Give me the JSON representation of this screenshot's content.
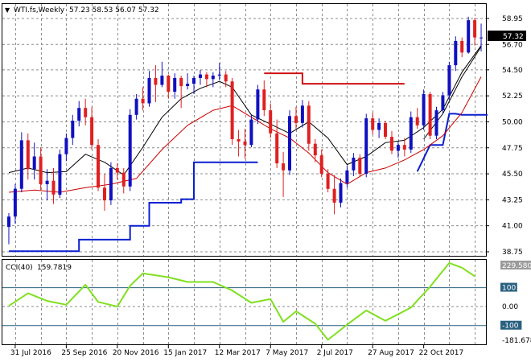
{
  "header": {
    "symbol": "WTI.fs,Weekly",
    "ohlc": "57.23 58.53 56.07 57.32"
  },
  "current_price_label": "57.32",
  "cci_header": {
    "label": "CCI(40)",
    "value": "159.7819"
  },
  "colors": {
    "bull": "#1010c0",
    "bear": "#e02020",
    "ma_fast": "#000000",
    "ma_slow": "#cc0000",
    "stop_up": "#0a1fd0",
    "stop_down": "#d01010",
    "cci": "#80e020",
    "grid": "#8c8c8c",
    "level_line": "#2a6080"
  },
  "chart_data": [
    {
      "type": "candlestick",
      "panel": "price",
      "y_ticks": [
        "58.95",
        "56.70",
        "54.50",
        "52.25",
        "50.00",
        "47.75",
        "45.50",
        "43.25",
        "41.00",
        "38.75"
      ],
      "x_ticks": [
        "31 Jul 2016",
        "25 Sep 2016",
        "20 Nov 2016",
        "15 Jan 2017",
        "12 Mar 2017",
        "7 May 2017",
        "2 Jul 2017",
        "27 Aug 2017",
        "22 Oct 2017"
      ],
      "ylim": [
        38.4,
        60.2
      ],
      "candles": [
        [
          40.9,
          42.1,
          39.4,
          41.8
        ],
        [
          41.8,
          44.6,
          41.2,
          44.2
        ],
        [
          44.2,
          49.1,
          43.9,
          48.4
        ],
        [
          48.4,
          49.0,
          45.0,
          45.9
        ],
        [
          45.9,
          48.2,
          45.0,
          47.0
        ],
        [
          47.0,
          47.8,
          44.1,
          44.6
        ],
        [
          44.6,
          45.9,
          43.2,
          44.9
        ],
        [
          44.9,
          46.0,
          42.9,
          43.7
        ],
        [
          43.7,
          47.6,
          43.4,
          47.2
        ],
        [
          47.2,
          49.0,
          46.6,
          48.6
        ],
        [
          48.6,
          50.6,
          48.0,
          50.1
        ],
        [
          50.1,
          51.8,
          49.6,
          51.2
        ],
        [
          51.2,
          52.0,
          49.7,
          50.4
        ],
        [
          50.4,
          51.3,
          47.6,
          48.0
        ],
        [
          48.0,
          48.5,
          44.0,
          44.3
        ],
        [
          44.3,
          45.5,
          42.3,
          43.2
        ],
        [
          43.2,
          46.5,
          42.8,
          46.0
        ],
        [
          46.0,
          46.4,
          45.0,
          45.6
        ],
        [
          45.6,
          46.0,
          43.8,
          44.4
        ],
        [
          44.4,
          51.1,
          44.0,
          50.6
        ],
        [
          50.6,
          52.4,
          50.2,
          52.0
        ],
        [
          52.0,
          53.0,
          51.0,
          51.6
        ],
        [
          51.6,
          54.4,
          51.3,
          53.8
        ],
        [
          53.8,
          54.9,
          51.7,
          53.2
        ],
        [
          53.2,
          55.2,
          53.0,
          54.0
        ],
        [
          54.0,
          54.1,
          52.0,
          52.6
        ],
        [
          52.6,
          54.2,
          52.0,
          53.8
        ],
        [
          53.8,
          54.0,
          51.2,
          53.1
        ],
        [
          53.1,
          54.2,
          52.8,
          53.3
        ],
        [
          53.3,
          54.0,
          52.4,
          53.8
        ],
        [
          53.8,
          54.5,
          53.2,
          54.1
        ],
        [
          54.1,
          54.3,
          53.0,
          53.7
        ],
        [
          53.7,
          54.3,
          53.0,
          54.0
        ],
        [
          54.0,
          55.1,
          53.6,
          54.1
        ],
        [
          54.1,
          54.4,
          53.0,
          53.5
        ],
        [
          53.5,
          53.8,
          48.0,
          48.5
        ],
        [
          48.5,
          49.3,
          47.0,
          48.3
        ],
        [
          48.3,
          49.4,
          46.8,
          48.0
        ],
        [
          48.0,
          50.6,
          47.8,
          50.2
        ],
        [
          50.2,
          53.2,
          49.8,
          52.8
        ],
        [
          52.8,
          53.6,
          50.5,
          51.0
        ],
        [
          51.0,
          51.6,
          48.6,
          49.0
        ],
        [
          49.0,
          50.2,
          46.0,
          46.4
        ],
        [
          46.4,
          47.4,
          43.5,
          45.8
        ],
        [
          45.8,
          51.0,
          45.4,
          50.5
        ],
        [
          50.5,
          51.3,
          49.4,
          49.9
        ],
        [
          49.9,
          51.9,
          49.5,
          51.4
        ],
        [
          51.4,
          51.8,
          47.5,
          48.1
        ],
        [
          48.1,
          48.5,
          46.5,
          47.1
        ],
        [
          47.1,
          47.6,
          45.2,
          45.5
        ],
        [
          45.5,
          45.9,
          43.9,
          44.2
        ],
        [
          44.2,
          45.4,
          42.0,
          43.0
        ],
        [
          43.0,
          45.1,
          42.6,
          44.7
        ],
        [
          44.7,
          46.2,
          44.3,
          45.8
        ],
        [
          45.8,
          47.3,
          45.3,
          46.9
        ],
        [
          46.9,
          47.2,
          45.2,
          45.5
        ],
        [
          45.5,
          50.7,
          45.2,
          50.3
        ],
        [
          50.3,
          50.8,
          48.9,
          49.3
        ],
        [
          49.3,
          50.3,
          48.6,
          49.9
        ],
        [
          49.9,
          50.1,
          48.5,
          48.7
        ],
        [
          48.7,
          49.2,
          47.2,
          47.5
        ],
        [
          47.5,
          48.3,
          46.9,
          48.0
        ],
        [
          48.0,
          48.6,
          47.0,
          47.6
        ],
        [
          47.6,
          50.9,
          47.3,
          50.4
        ],
        [
          50.4,
          51.2,
          49.4,
          49.7
        ],
        [
          49.7,
          52.8,
          49.3,
          52.4
        ],
        [
          52.4,
          52.6,
          48.5,
          48.8
        ],
        [
          48.8,
          51.3,
          48.5,
          51.0
        ],
        [
          51.0,
          52.6,
          50.7,
          52.3
        ],
        [
          52.3,
          55.2,
          51.9,
          54.9
        ],
        [
          54.9,
          57.4,
          54.4,
          57.0
        ],
        [
          57.0,
          57.3,
          55.6,
          56.0
        ],
        [
          56.0,
          59.1,
          55.9,
          58.8
        ],
        [
          58.8,
          59.0,
          56.6,
          57.3
        ],
        [
          57.3,
          58.5,
          56.1,
          57.3
        ]
      ],
      "ma_fast": [
        [
          0,
          45.6
        ],
        [
          3,
          46.0
        ],
        [
          6,
          45.6
        ],
        [
          9,
          45.7
        ],
        [
          12,
          47.2
        ],
        [
          15,
          46.5
        ],
        [
          18,
          45.4
        ],
        [
          21,
          47.8
        ],
        [
          24,
          50.4
        ],
        [
          27,
          52.0
        ],
        [
          30,
          52.9
        ],
        [
          33,
          53.5
        ],
        [
          35,
          53.0
        ],
        [
          38,
          50.6
        ],
        [
          41,
          49.8
        ],
        [
          44,
          49.0
        ],
        [
          47,
          50.0
        ],
        [
          50,
          48.6
        ],
        [
          53,
          46.3
        ],
        [
          56,
          47.0
        ],
        [
          59,
          48.2
        ],
        [
          62,
          48.4
        ],
        [
          65,
          49.5
        ],
        [
          68,
          51.1
        ],
        [
          71,
          54.3
        ],
        [
          74,
          56.6
        ]
      ],
      "ma_slow": [
        [
          0,
          43.9
        ],
        [
          4,
          44.1
        ],
        [
          8,
          43.9
        ],
        [
          12,
          44.3
        ],
        [
          16,
          44.6
        ],
        [
          20,
          45.1
        ],
        [
          24,
          47.6
        ],
        [
          28,
          49.7
        ],
        [
          32,
          51.0
        ],
        [
          35,
          51.4
        ],
        [
          38,
          50.4
        ],
        [
          41,
          49.4
        ],
        [
          44,
          48.6
        ],
        [
          47,
          47.3
        ],
        [
          50,
          45.6
        ],
        [
          53,
          44.6
        ],
        [
          56,
          45.6
        ],
        [
          59,
          46.0
        ],
        [
          62,
          46.7
        ],
        [
          65,
          47.6
        ],
        [
          68,
          48.8
        ],
        [
          71,
          50.8
        ],
        [
          74,
          53.9
        ]
      ],
      "ma_trend": [
        [
          65,
          48.5
        ],
        [
          68,
          50.7
        ],
        [
          71,
          53.9
        ],
        [
          74,
          56.5
        ]
      ],
      "stop_levels": [
        {
          "dir": "up",
          "points": [
            [
              0,
              38.8
            ],
            [
              11,
              38.8
            ],
            [
              11,
              39.8
            ],
            [
              19,
              39.8
            ],
            [
              19,
              41.0
            ],
            [
              22,
              41.0
            ],
            [
              22,
              43.0
            ],
            [
              27,
              43.0
            ],
            [
              27,
              43.3
            ],
            [
              29,
              43.3
            ],
            [
              29,
              46.5
            ],
            [
              39,
              46.5
            ]
          ]
        },
        {
          "dir": "down",
          "points": [
            [
              40,
              54.2
            ],
            [
              46,
              54.2
            ],
            [
              46,
              53.3
            ],
            [
              62,
              53.3
            ]
          ]
        },
        {
          "dir": "up",
          "points": [
            [
              64,
              45.7
            ],
            [
              66,
              48.0
            ],
            [
              68,
              48.0
            ],
            [
              69,
              50.7
            ],
            [
              70,
              50.7
            ],
            [
              71,
              50.6
            ],
            [
              75,
              50.6
            ]
          ]
        }
      ]
    },
    {
      "type": "line",
      "panel": "oscillator",
      "name": "CCI(40)",
      "y_ticks": [
        "229.5804",
        "100",
        "0.00",
        "-100",
        "-181.678"
      ],
      "levels": [
        100,
        -100
      ],
      "ylim": [
        -181.678,
        229.5804
      ],
      "x": [
        0,
        3,
        6,
        9,
        12,
        14,
        17,
        19,
        21,
        23,
        25,
        28,
        32,
        35,
        38,
        41,
        43,
        45,
        48,
        50,
        53,
        56,
        59,
        63,
        66,
        69,
        71,
        73
      ],
      "values": [
        4,
        70,
        30,
        10,
        115,
        25,
        0,
        110,
        175,
        165,
        155,
        130,
        130,
        85,
        20,
        40,
        -80,
        -25,
        -90,
        -175,
        -95,
        -20,
        -75,
        -5,
        105,
        230,
        205,
        160
      ]
    }
  ]
}
